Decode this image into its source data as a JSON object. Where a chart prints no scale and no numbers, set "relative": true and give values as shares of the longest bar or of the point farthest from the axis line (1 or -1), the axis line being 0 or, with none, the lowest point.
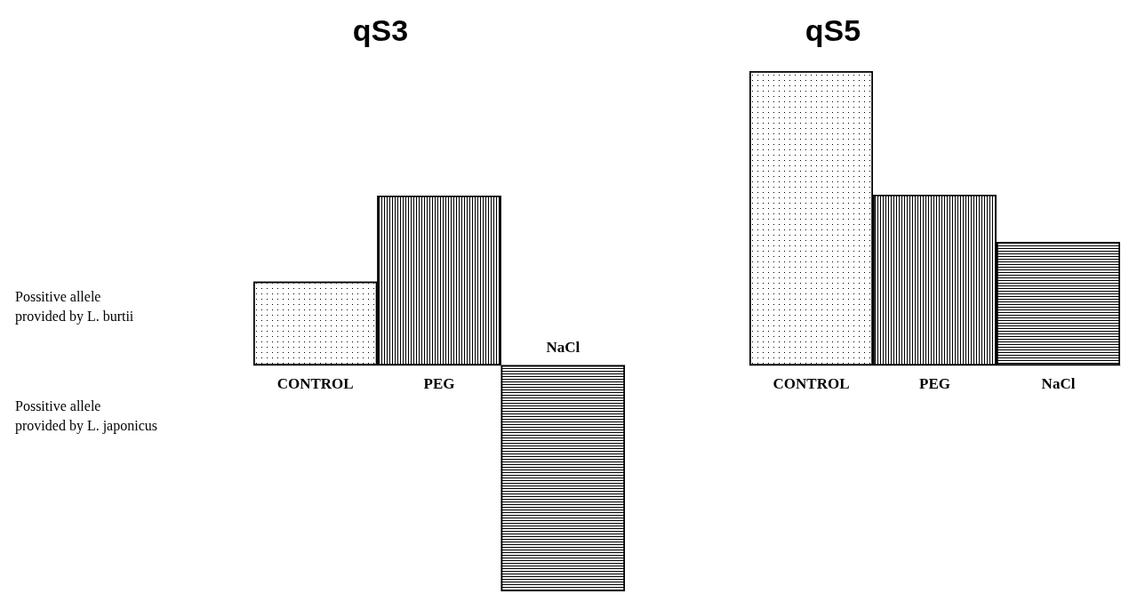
{
  "chart_data": [
    {
      "type": "bar",
      "title": "qS3",
      "relative": true,
      "categories": [
        "CONTROL",
        "PEG",
        "NaCl"
      ],
      "values": [
        0.37,
        0.75,
        -1
      ],
      "colors": [
        "#000000",
        "#000000",
        "#000000"
      ],
      "annotations": [
        "Possitive allele\nprovided by L. burtii",
        "Possitive allele\nprovided by L. japonicus"
      ]
    },
    {
      "type": "bar",
      "title": "qS5",
      "relative": true,
      "categories": [
        "CONTROL",
        "PEG",
        "NaCl"
      ],
      "values": [
        1,
        0.58,
        0.42
      ],
      "colors": [
        "#000000",
        "#000000",
        "#000000"
      ]
    }
  ]
}
